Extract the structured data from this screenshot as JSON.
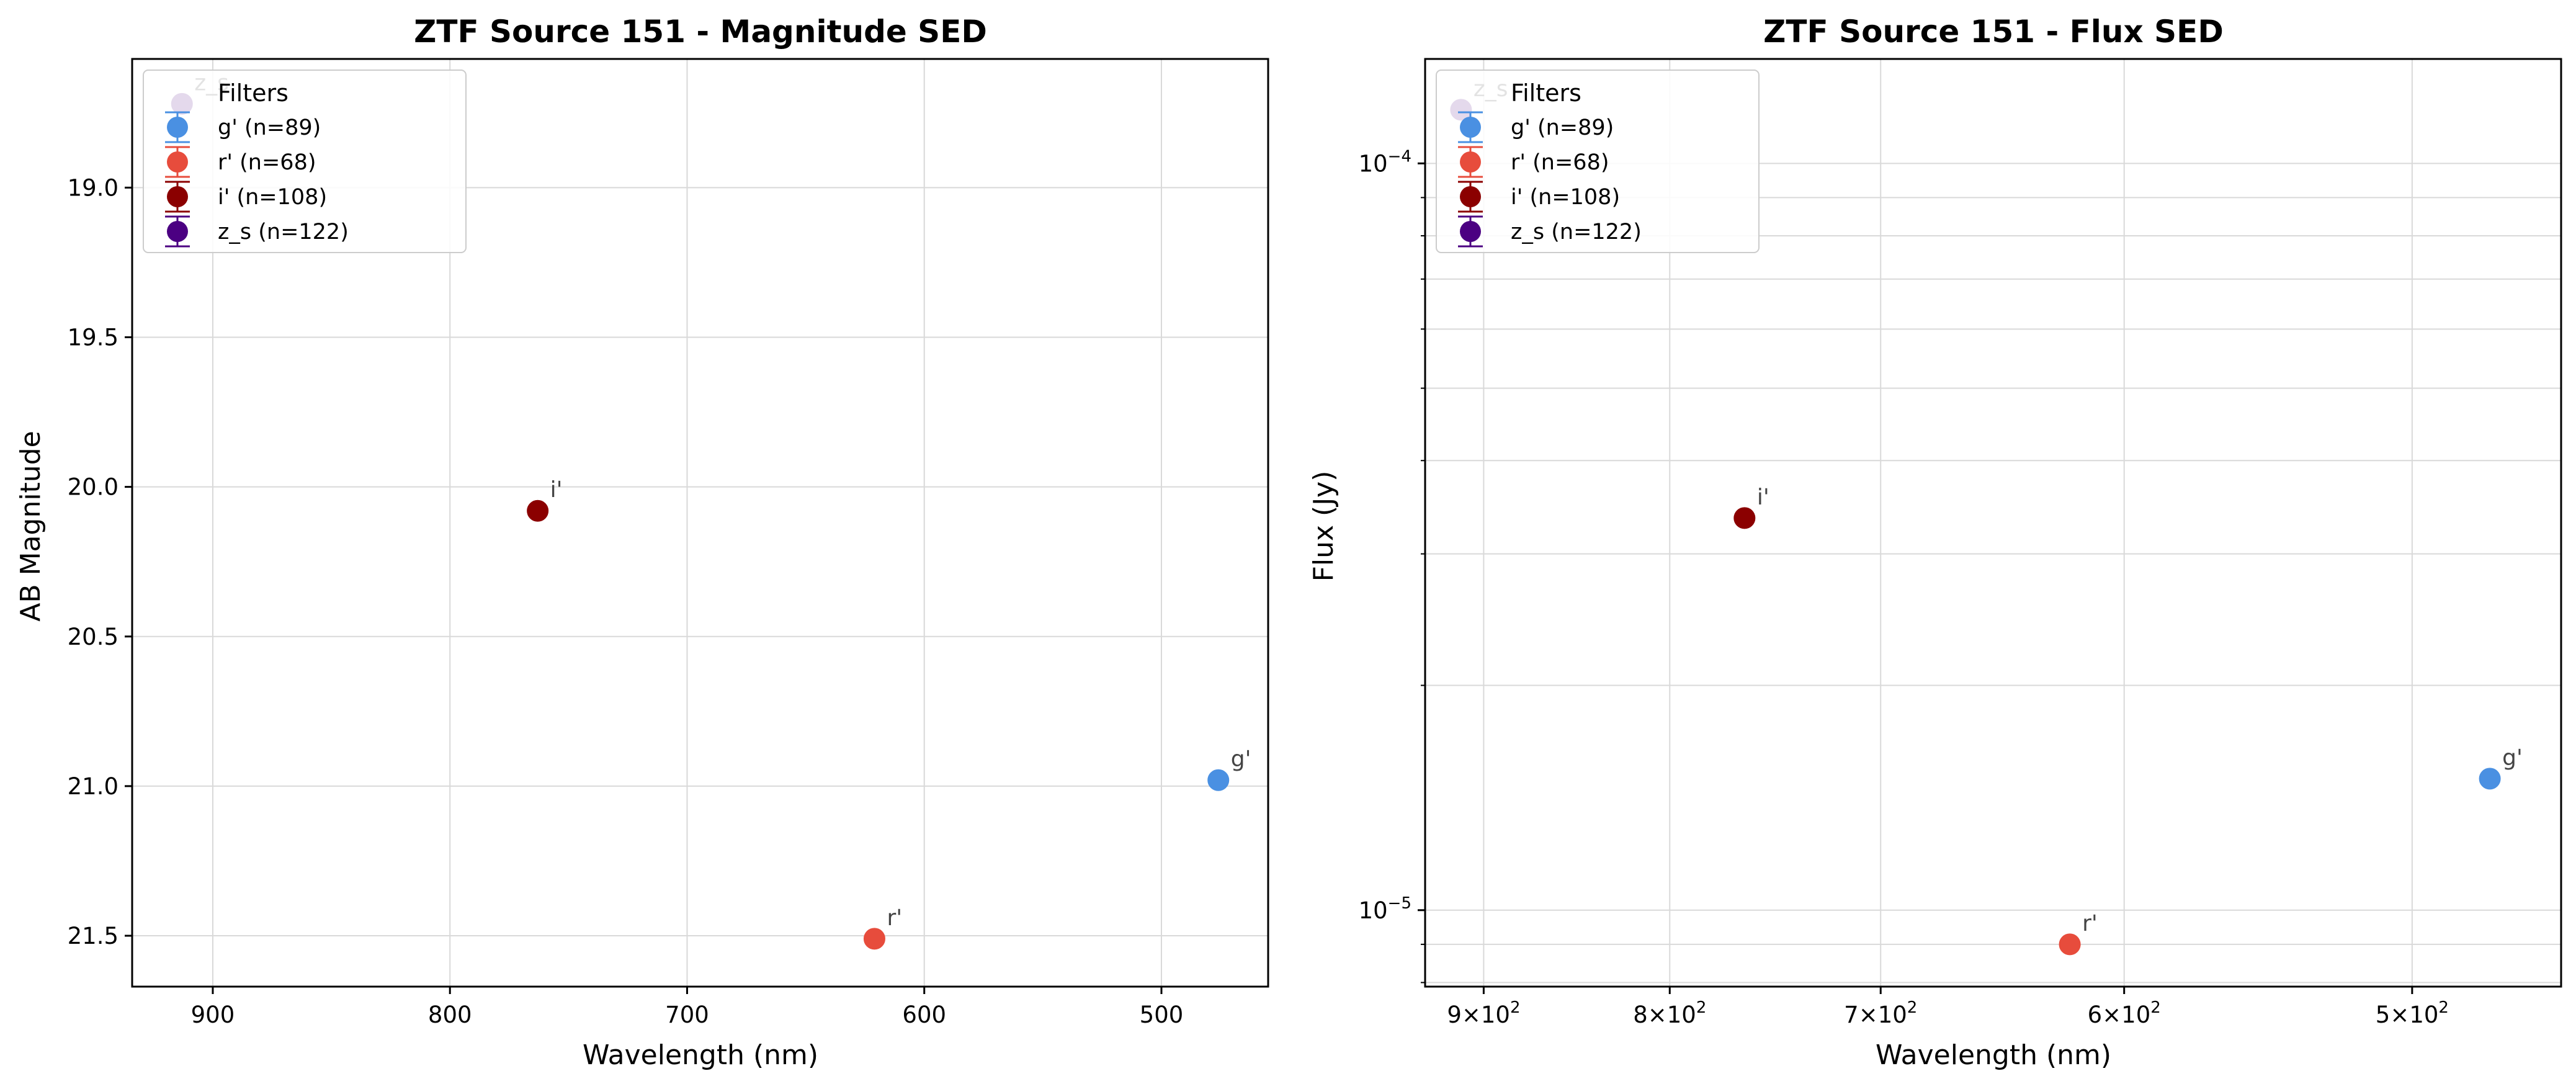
{
  "chart_data": [
    {
      "type": "scatter",
      "title": "ZTF Source 151 - Magnitude SED",
      "xlabel": "Wavelength (nm)",
      "ylabel": "AB Magnitude",
      "xscale": "linear",
      "yscale": "linear",
      "y_inverted": true,
      "xlim": [
        455,
        934
      ],
      "ylim": [
        18.57,
        21.67
      ],
      "xticks": [
        500,
        600,
        700,
        800,
        900
      ],
      "xtick_labels": [
        "500",
        "600",
        "700",
        "800",
        "900"
      ],
      "yticks": [
        19.0,
        19.5,
        20.0,
        20.5,
        21.0,
        21.5
      ],
      "ytick_labels": [
        "19.0",
        "19.5",
        "20.0",
        "20.5",
        "21.0",
        "21.5"
      ],
      "grid": true,
      "legend": {
        "title": "Filters",
        "placement": "top-left"
      },
      "series": [
        {
          "name": "g' (n=89)",
          "label": "g'",
          "x": 476,
          "y": 20.98,
          "color": "#4a90e2"
        },
        {
          "name": "r' (n=68)",
          "label": "r'",
          "x": 621,
          "y": 21.51,
          "color": "#e74c3c"
        },
        {
          "name": "i' (n=108)",
          "label": "i'",
          "x": 763,
          "y": 20.08,
          "color": "#8b0000"
        },
        {
          "name": "z_s (n=122)",
          "label": "z_s",
          "x": 913,
          "y": 18.72,
          "color": "#4b0082"
        }
      ]
    },
    {
      "type": "scatter",
      "title": "ZTF Source 151 - Flux SED",
      "xlabel": "Wavelength (nm)",
      "ylabel": "Flux (Jy)",
      "xscale": "log",
      "yscale": "log",
      "y_inverted": false,
      "xlim": [
        455,
        934
      ],
      "ylim": [
        7.9e-06,
        0.000138
      ],
      "xticks": [
        500,
        600,
        700,
        800,
        900
      ],
      "xtick_labels": [
        {
          "base": "5×10",
          "exp": "2"
        },
        {
          "base": "6×10",
          "exp": "2"
        },
        {
          "base": "7×10",
          "exp": "2"
        },
        {
          "base": "8×10",
          "exp": "2"
        },
        {
          "base": "9×10",
          "exp": "2"
        }
      ],
      "yticks": [
        1e-05,
        0.0001
      ],
      "ytick_labels": [
        {
          "base": "10",
          "exp": "−5"
        },
        {
          "base": "10",
          "exp": "−4"
        }
      ],
      "grid": true,
      "legend": {
        "title": "Filters",
        "placement": "top-left"
      },
      "series": [
        {
          "name": "g' (n=89)",
          "label": "g'",
          "x": 476,
          "y": 1.5e-05,
          "color": "#4a90e2"
        },
        {
          "name": "r' (n=68)",
          "label": "r'",
          "x": 621,
          "y": 9e-06,
          "color": "#e74c3c"
        },
        {
          "name": "i' (n=108)",
          "label": "i'",
          "x": 763,
          "y": 3.35e-05,
          "color": "#8b0000"
        },
        {
          "name": "z_s (n=122)",
          "label": "z_s",
          "x": 913,
          "y": 0.000118,
          "color": "#4b0082"
        }
      ]
    }
  ]
}
